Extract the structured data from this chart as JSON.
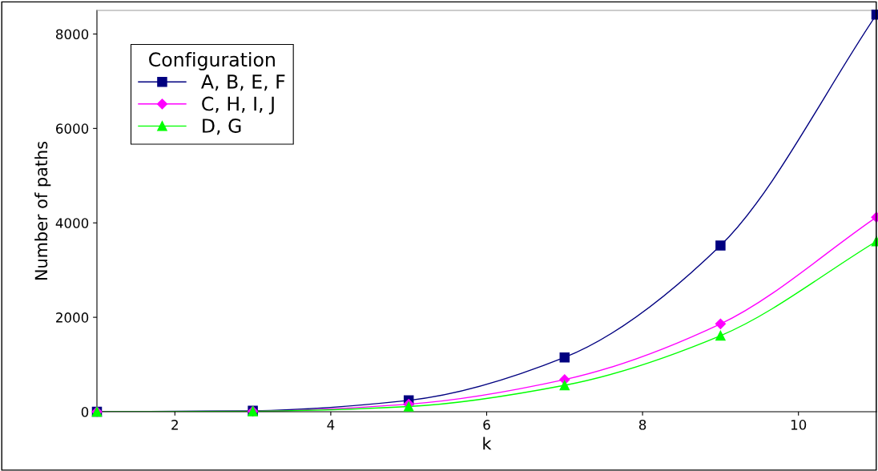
{
  "chart_data": {
    "type": "line",
    "xlabel": "k",
    "ylabel": "Number of paths",
    "x": [
      1,
      3,
      5,
      7,
      9,
      11
    ],
    "series": [
      {
        "name": "A, B, E, F",
        "color": "#000080",
        "marker": "square",
        "values": [
          0,
          20,
          240,
          1150,
          3520,
          8410
        ]
      },
      {
        "name": "C, H, I, J",
        "color": "#ff00ff",
        "marker": "diamond",
        "values": [
          0,
          10,
          160,
          680,
          1860,
          4120
        ]
      },
      {
        "name": "D, G",
        "color": "#00ff00",
        "marker": "triangle",
        "values": [
          0,
          10,
          110,
          560,
          1610,
          3610
        ]
      }
    ],
    "xlim": [
      1,
      11
    ],
    "xticks": [
      2,
      4,
      6,
      8,
      10
    ],
    "ylim": [
      0,
      8500
    ],
    "yticks": [
      0,
      2000,
      4000,
      6000,
      8000
    ],
    "legend": "top left",
    "legend_title": "Configuration",
    "grid": false,
    "line_style": "solid"
  }
}
